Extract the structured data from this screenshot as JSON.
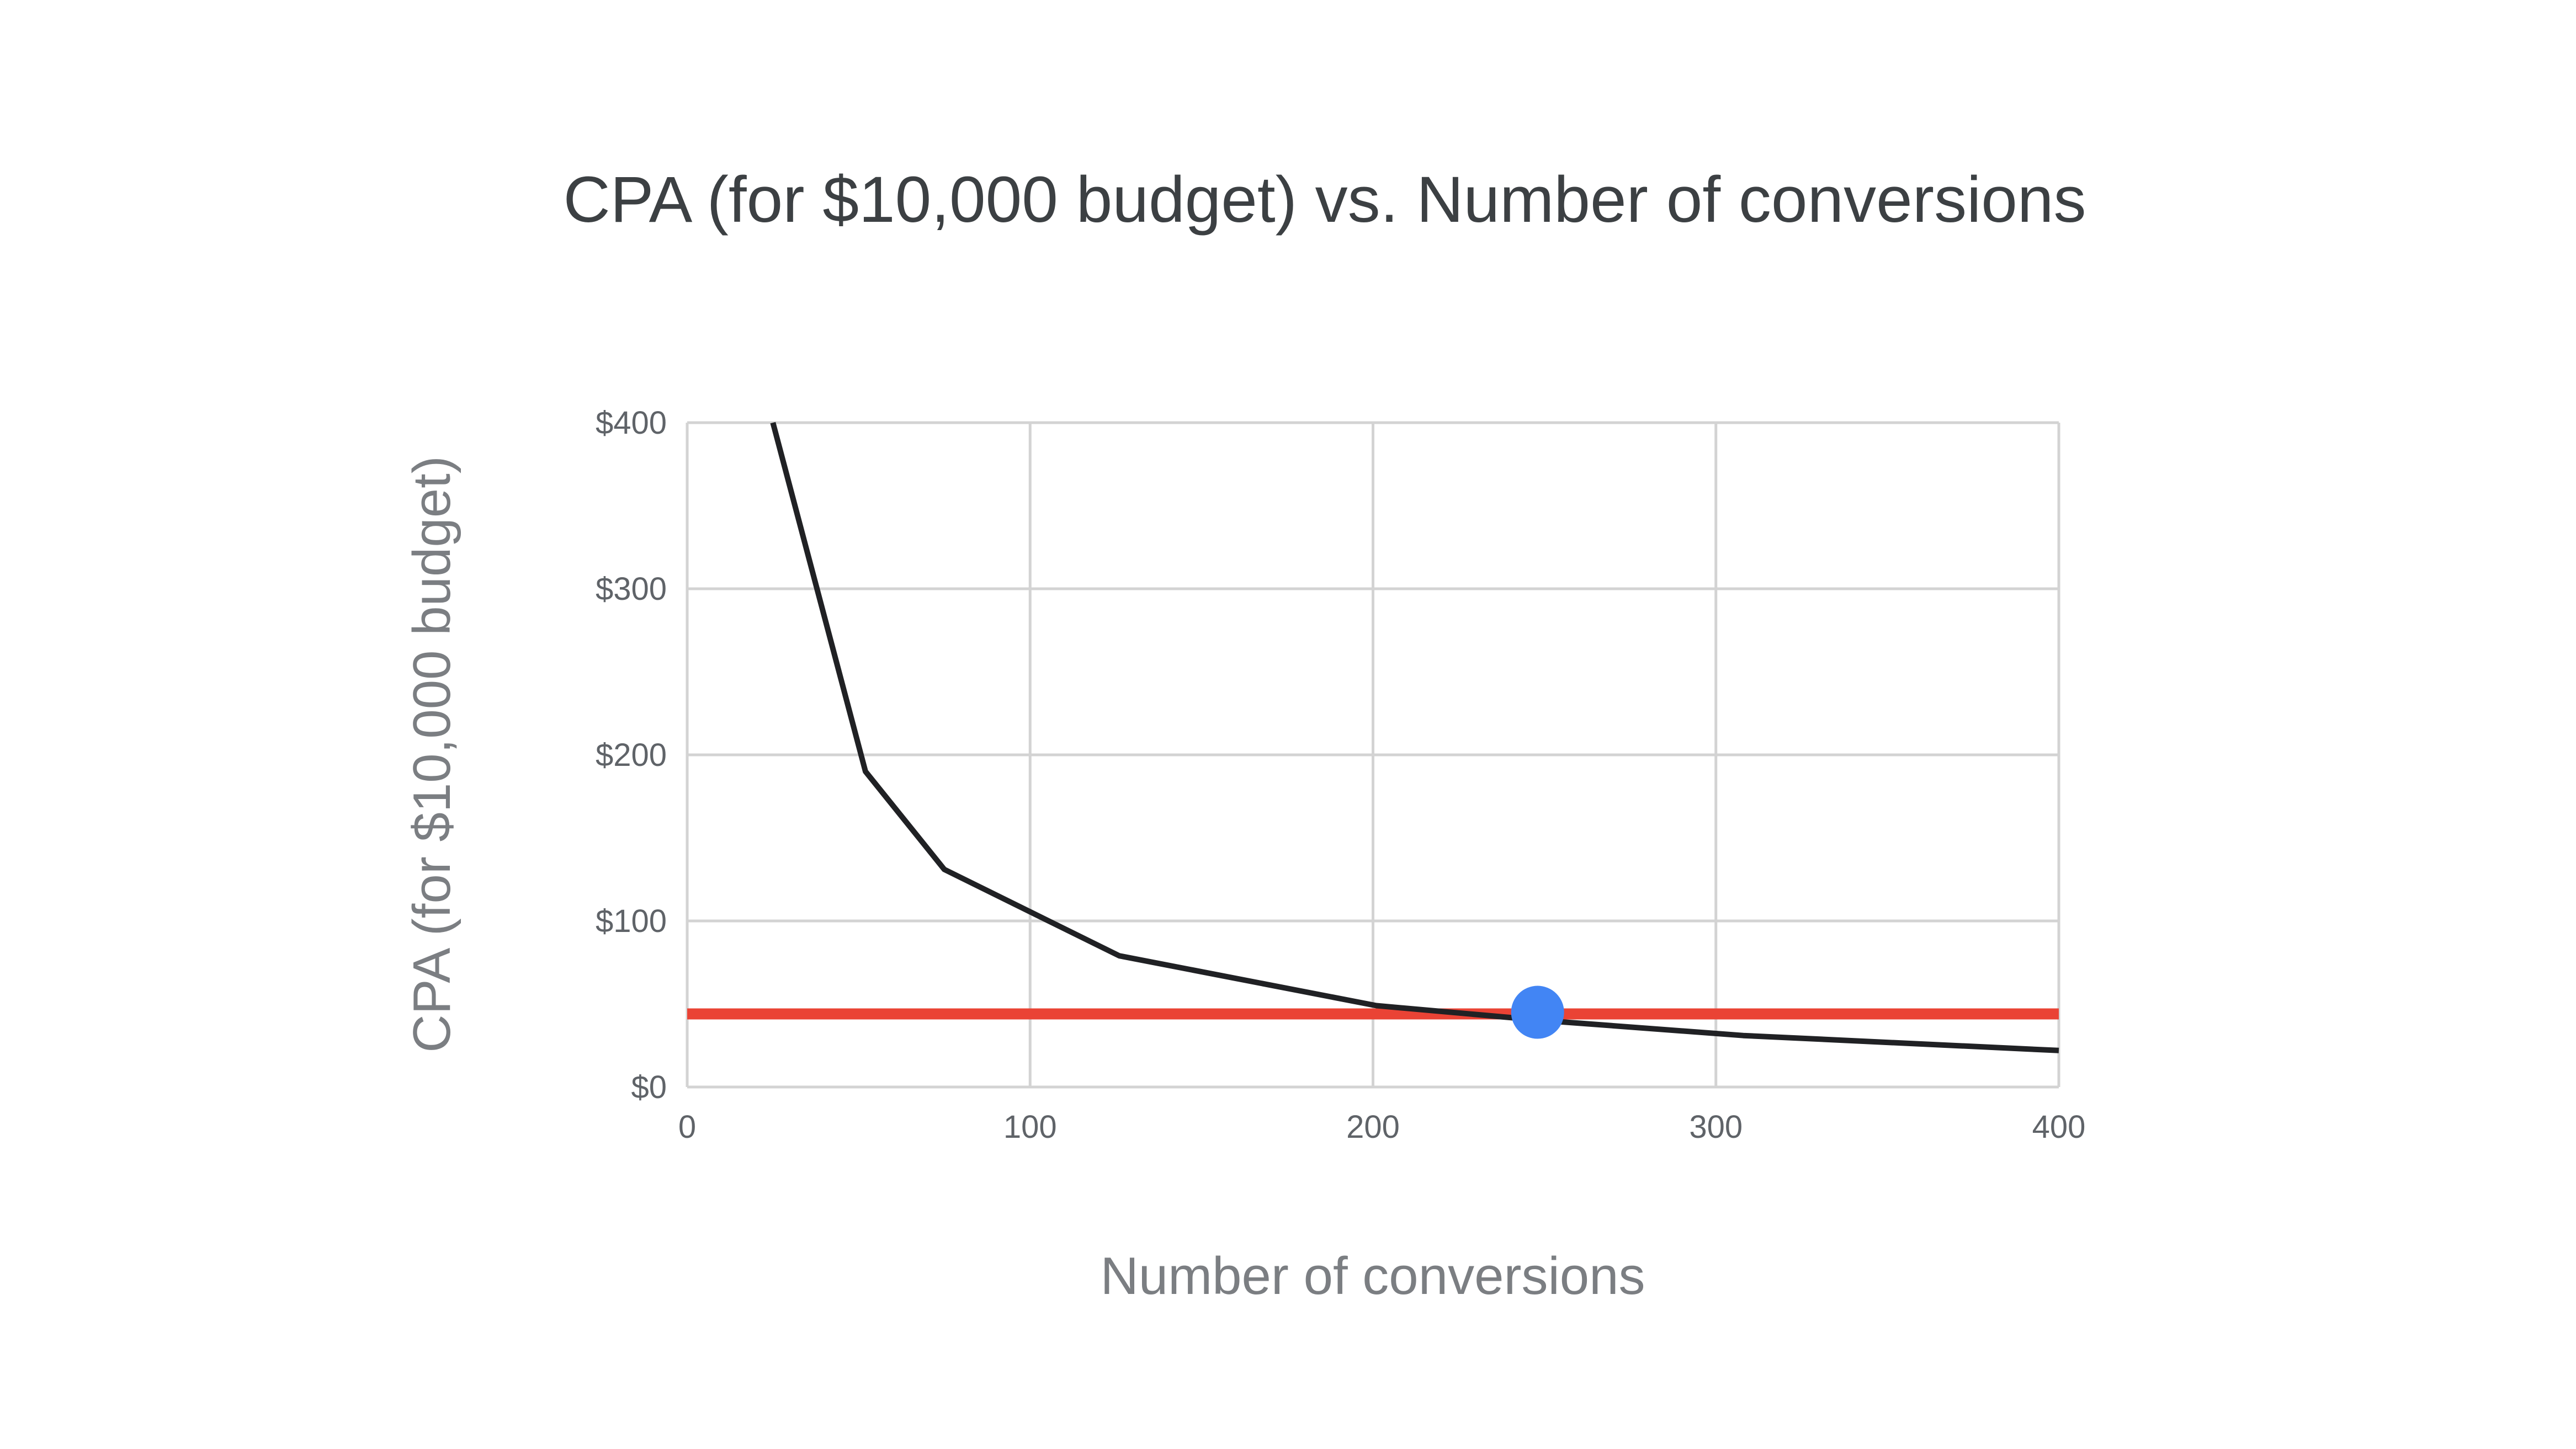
{
  "chart_data": {
    "type": "line",
    "title": "CPA (for $10,000 budget) vs. Number of conversions",
    "xlabel": "Number of conversions",
    "ylabel": "CPA (for $10,000 budget)",
    "xlim": [
      0,
      400
    ],
    "ylim": [
      0,
      400
    ],
    "x_ticks": [
      0,
      100,
      200,
      300,
      400
    ],
    "x_tick_labels": [
      "0",
      "100",
      "200",
      "300",
      "400"
    ],
    "y_ticks": [
      0,
      100,
      200,
      300,
      400
    ],
    "y_tick_labels": [
      "$0",
      "$100",
      "$200",
      "$300",
      "$400"
    ],
    "grid": true,
    "legend": "none",
    "series": [
      {
        "color": "#202124",
        "x": [
          25,
          52,
          75,
          126,
          201,
          250,
          308,
          400
        ],
        "y": [
          400,
          190,
          131,
          79,
          49,
          40,
          31,
          22
        ]
      }
    ],
    "reference_line": {
      "orientation": "horizontal",
      "y": 44,
      "color": "#ea4335"
    },
    "highlight_point": {
      "x": 248,
      "y": 45,
      "color": "#4285f4"
    }
  }
}
